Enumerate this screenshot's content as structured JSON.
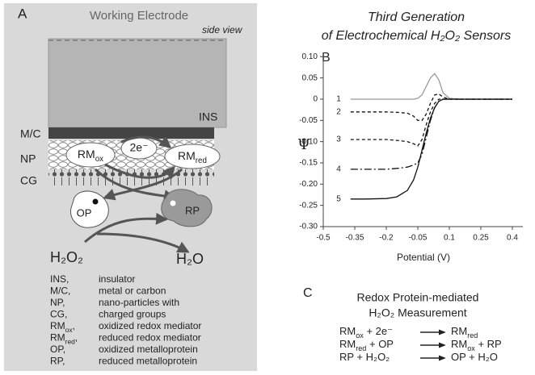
{
  "panel_a": {
    "label": "A",
    "title": "Working Electrode",
    "side_view": "side view",
    "ins": "INS",
    "layers": [
      "M/C",
      "NP",
      "CG"
    ],
    "rm_ox": [
      {
        "base": "RM",
        "sub": "ox"
      }
    ],
    "electrons": "2e⁻",
    "rm_red": [
      {
        "base": "RM",
        "sub": "red"
      }
    ],
    "op": "OP",
    "rp": "RP",
    "reactant": "H₂O₂",
    "product": "H₂O",
    "legend": [
      {
        "abbr": [
          "INS,"
        ],
        "text": "insulator"
      },
      {
        "abbr": [
          "M/C,"
        ],
        "text": "metal or carbon"
      },
      {
        "abbr": [
          "NP,"
        ],
        "text": "nano-particles with"
      },
      {
        "abbr": [
          "CG,"
        ],
        "text": "charged groups"
      },
      {
        "abbr": [
          {
            "base": "RM",
            "sub": "ox"
          },
          ","
        ],
        "text": "oxidized redox mediator"
      },
      {
        "abbr": [
          {
            "base": "RM",
            "sub": "red"
          },
          ","
        ],
        "text": "reduced redox mediator"
      },
      {
        "abbr": [
          "OP,"
        ],
        "text": "oxidized metalloprotein"
      },
      {
        "abbr": [
          "RP,"
        ],
        "text": "reduced metalloprotein"
      }
    ]
  },
  "chart_data": {
    "type": "line",
    "label": "B",
    "title": [
      "Third Generation",
      "of Electrochemical H₂O₂ Sensors"
    ],
    "xlabel": "Potential (V)",
    "ylabel": "Ψ",
    "x": [
      -0.37,
      -0.3,
      -0.2,
      -0.15,
      -0.1,
      -0.07,
      -0.05,
      -0.03,
      -0.01,
      0.01,
      0.03,
      0.05,
      0.07,
      0.1,
      0.15,
      0.25,
      0.4
    ],
    "series": [
      {
        "name": "1",
        "color": "#999999",
        "style": "solid",
        "values": [
          0,
          0,
          0,
          0,
          0,
          0,
          0.002,
          0.01,
          0.03,
          0.05,
          0.06,
          0.045,
          0.015,
          0.002,
          0,
          0,
          0
        ]
      },
      {
        "name": "2",
        "color": "#111111",
        "style": "dashed",
        "values": [
          -0.03,
          -0.03,
          -0.03,
          -0.031,
          -0.033,
          -0.04,
          -0.05,
          -0.05,
          -0.035,
          -0.01,
          0.01,
          0.012,
          0.005,
          0,
          0,
          0,
          0
        ]
      },
      {
        "name": "3",
        "color": "#111111",
        "style": "dashed",
        "values": [
          -0.095,
          -0.095,
          -0.095,
          -0.097,
          -0.1,
          -0.105,
          -0.11,
          -0.095,
          -0.06,
          -0.03,
          -0.01,
          0,
          0,
          0,
          0,
          0,
          0
        ]
      },
      {
        "name": "4",
        "color": "#111111",
        "style": "dashdot",
        "values": [
          -0.165,
          -0.165,
          -0.165,
          -0.163,
          -0.16,
          -0.155,
          -0.15,
          -0.13,
          -0.09,
          -0.05,
          -0.02,
          -0.005,
          0,
          0,
          0,
          0,
          0
        ]
      },
      {
        "name": "5",
        "color": "#111111",
        "style": "solid",
        "values": [
          -0.235,
          -0.235,
          -0.234,
          -0.23,
          -0.215,
          -0.19,
          -0.16,
          -0.12,
          -0.08,
          -0.045,
          -0.02,
          -0.005,
          0,
          0,
          0,
          0,
          0
        ]
      }
    ],
    "xlim": [
      -0.5,
      0.45
    ],
    "ylim": [
      -0.3,
      0.11
    ],
    "xticks": [
      -0.5,
      -0.35,
      -0.2,
      -0.05,
      0.1,
      0.25,
      0.4
    ],
    "yticks": [
      {
        "value": 0.1,
        "label": "0.10"
      },
      0.05,
      0,
      -0.05,
      {
        "value": -0.1,
        "label": "-0.10"
      },
      -0.15,
      {
        "value": -0.2,
        "label": "-0.20"
      },
      -0.25,
      {
        "value": -0.3,
        "label": "-0.30"
      }
    ]
  },
  "panel_c": {
    "label": "C",
    "title": [
      "Redox Protein-mediated",
      "H₂O₂ Measurement"
    ],
    "reactions": [
      {
        "left": [
          {
            "base": "RM",
            "sub": "ox"
          },
          " + 2e⁻"
        ],
        "right": [
          {
            "base": "RM",
            "sub": "red"
          }
        ]
      },
      {
        "left": [
          {
            "base": "RM",
            "sub": "red"
          },
          " + OP"
        ],
        "right": [
          {
            "base": "RM",
            "sub": "ox"
          },
          " + RP"
        ]
      },
      {
        "left": [
          "RP + H₂O₂"
        ],
        "right": [
          "OP + H₂O"
        ]
      }
    ]
  }
}
